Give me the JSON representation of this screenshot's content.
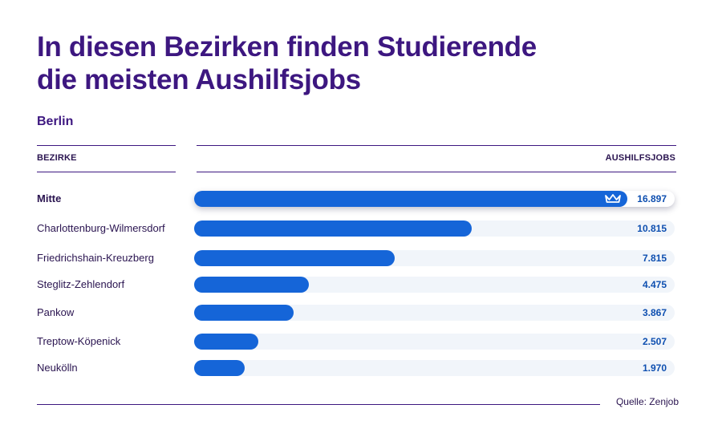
{
  "header": {
    "title_line1": "In diesen Bezirken finden Studierende",
    "title_line2": "die meisten Aushilfsjobs",
    "subtitle": "Berlin"
  },
  "columns": {
    "left": "BEZIRKE",
    "right": "AUSHILFSJOBS"
  },
  "source": "Quelle: Zenjob",
  "colors": {
    "title": "#3d1780",
    "bar": "#1565d8",
    "track": "#f1f5fa",
    "value": "#0e4fb0"
  },
  "icons": {
    "top_row": "crown-icon"
  },
  "chart_data": {
    "type": "bar",
    "orientation": "horizontal",
    "categories": [
      "Mitte",
      "Charlottenburg-Wilmersdorf",
      "Friedrichshain-Kreuzberg",
      "Steglitz-Zehlendorf",
      "Pankow",
      "Treptow-Köpenick",
      "Neukölln"
    ],
    "values": [
      16897,
      10815,
      7815,
      4475,
      3867,
      2507,
      1970
    ],
    "value_labels": [
      "16.897",
      "10.815",
      "7.815",
      "4.475",
      "3.867",
      "2.507",
      "1.970"
    ],
    "title": "In diesen Bezirken finden Studierende die meisten Aushilfsjobs",
    "xlabel": "AUSHILFSJOBS",
    "ylabel": "BEZIRKE",
    "grid": false,
    "legend": "none"
  }
}
